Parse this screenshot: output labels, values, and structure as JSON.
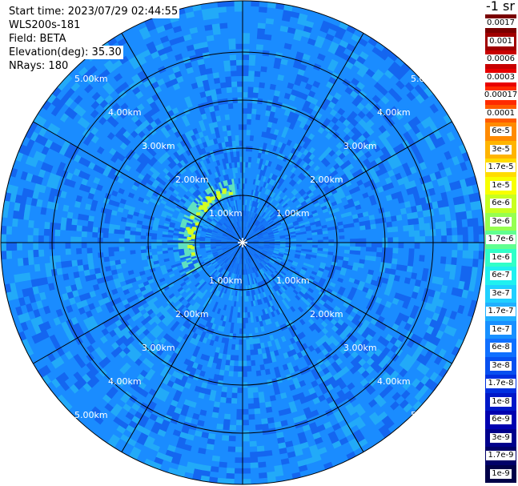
{
  "info": {
    "start_time": "Start time: 2023/07/29 02:44:55",
    "instrument": "WLS200s-181",
    "field": "Field: BETA",
    "elevation": "Elevation(deg): 35.30",
    "nrays": "NRays: 180"
  },
  "colorbar": {
    "unit_label": "-1 sr",
    "labels": [
      "0.0017",
      "0.001",
      "0.0006",
      "0.0003",
      "0.00017",
      "0.0001",
      "6e-5",
      "3e-5",
      "1.7e-5",
      "1e-5",
      "6e-6",
      "3e-6",
      "1.7e-6",
      "1e-6",
      "6e-7",
      "3e-7",
      "1.7e-7",
      "1e-7",
      "6e-8",
      "3e-8",
      "1.7e-8",
      "1e-8",
      "6e-9",
      "3e-9",
      "1.7e-9",
      "1e-9"
    ],
    "colors": [
      "#7a0000",
      "#a00000",
      "#c80000",
      "#e80000",
      "#ff2a00",
      "#ff5a00",
      "#ff8a00",
      "#ffb400",
      "#ffdc00",
      "#f8ff00",
      "#c8ff20",
      "#96ff50",
      "#60ff90",
      "#30ffc8",
      "#20f0f0",
      "#20d0ff",
      "#20b0ff",
      "#1890ff",
      "#1070ff",
      "#0850f0",
      "#0030e0",
      "#0018c8",
      "#0000b0",
      "#00008c",
      "#000068",
      "#000048"
    ]
  },
  "range_labels": {
    "r1": "1.00km",
    "r2": "2.00km",
    "r3": "3.00km",
    "r4": "4.00km",
    "r5": "5.00km"
  },
  "palette": {
    "background_field": "#1a8cff",
    "low_return": "#1466f0",
    "mid_return": "#22aaf8",
    "high_return": "#5fe0c0",
    "hot_return": "#d4ff20"
  }
}
